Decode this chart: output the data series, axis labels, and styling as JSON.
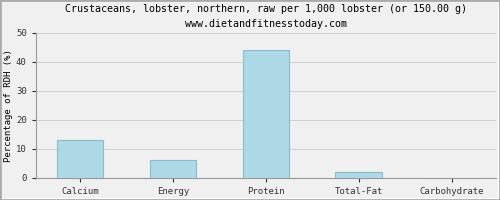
{
  "title": "Crustaceans, lobster, northern, raw per 1,000 lobster (or 150.00 g)",
  "subtitle": "www.dietandfitnesstoday.com",
  "categories": [
    "Calcium",
    "Energy",
    "Protein",
    "Total-Fat",
    "Carbohydrate"
  ],
  "values": [
    13,
    6,
    44,
    2,
    0
  ],
  "bar_color": "#add8e6",
  "bar_edge_color": "#8bbccc",
  "ylabel": "Percentage of RDH (%)",
  "ylim": [
    0,
    50
  ],
  "yticks": [
    0,
    10,
    20,
    30,
    40,
    50
  ],
  "background_color": "#f0f0f0",
  "title_fontsize": 7.2,
  "subtitle_fontsize": 7.0,
  "ylabel_fontsize": 6.5,
  "tick_fontsize": 6.5,
  "grid_color": "#d0d0d0",
  "border_color": "#999999"
}
